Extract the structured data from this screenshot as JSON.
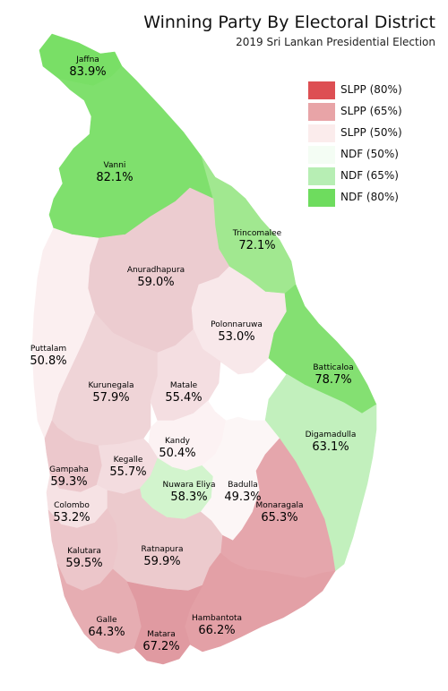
{
  "title": "Winning Party By Electoral District",
  "subtitle": "2019 Sri Lankan Presidential Election",
  "legend": [
    {
      "label": "SLPP (80%)",
      "color": "#dd4f53"
    },
    {
      "label": "SLPP (65%)",
      "color": "#e8a4a7"
    },
    {
      "label": "SLPP (50%)",
      "color": "#fbecec"
    },
    {
      "label": "NDF (50%)",
      "color": "#f4fdf4"
    },
    {
      "label": "NDF (65%)",
      "color": "#b7eeb4"
    },
    {
      "label": "NDF (80%)",
      "color": "#6edc5e"
    }
  ],
  "districts": [
    {
      "name": "Jaffna",
      "percent": "83.9%",
      "winner": "NDF",
      "color": "#79df66"
    },
    {
      "name": "Vanni",
      "percent": "82.1%",
      "winner": "NDF",
      "color": "#7fe06d"
    },
    {
      "name": "Trincomalee",
      "percent": "72.1%",
      "winner": "NDF",
      "color": "#a1e890"
    },
    {
      "name": "Anuradhapura",
      "percent": "59.0%",
      "winner": "SLPP",
      "color": "#ecccd0"
    },
    {
      "name": "Polonnaruwa",
      "percent": "53.0%",
      "winner": "SLPP",
      "color": "#f8e8ea"
    },
    {
      "name": "Puttalam",
      "percent": "50.8%",
      "winner": "SLPP",
      "color": "#fbeff0"
    },
    {
      "name": "Batticaloa",
      "percent": "78.7%",
      "winner": "NDF",
      "color": "#84e072"
    },
    {
      "name": "Kurunegala",
      "percent": "57.9%",
      "winner": "SLPP",
      "color": "#efd4d7"
    },
    {
      "name": "Matale",
      "percent": "55.4%",
      "winner": "SLPP",
      "color": "#f4dee1"
    },
    {
      "name": "Kandy",
      "percent": "50.4%",
      "winner": "SLPP",
      "color": "#fcf2f3"
    },
    {
      "name": "Digamadulla",
      "percent": "63.1%",
      "winner": "NDF",
      "color": "#c2f0bd"
    },
    {
      "name": "Gampaha",
      "percent": "59.3%",
      "winner": "SLPP",
      "color": "#ecc8cc"
    },
    {
      "name": "Kegalle",
      "percent": "55.7%",
      "winner": "SLPP",
      "color": "#f3dcdf"
    },
    {
      "name": "Nuwara Eliya",
      "percent": "58.3%",
      "winner": "NDF",
      "color": "#d2f4cd"
    },
    {
      "name": "Badulla",
      "percent": "49.3%",
      "winner": "SLPP",
      "color": "#fcf6f6"
    },
    {
      "name": "Colombo",
      "percent": "53.2%",
      "winner": "SLPP",
      "color": "#f6e2e4"
    },
    {
      "name": "Monaragala",
      "percent": "65.3%",
      "winner": "SLPP",
      "color": "#e5a6ac"
    },
    {
      "name": "Kalutara",
      "percent": "59.5%",
      "winner": "SLPP",
      "color": "#ecc6ca"
    },
    {
      "name": "Ratnapura",
      "percent": "59.9%",
      "winner": "SLPP",
      "color": "#eccacd"
    },
    {
      "name": "Galle",
      "percent": "64.3%",
      "winner": "SLPP",
      "color": "#e6adb2"
    },
    {
      "name": "Hambantota",
      "percent": "66.2%",
      "winner": "SLPP",
      "color": "#e3a0a6"
    },
    {
      "name": "Matara",
      "percent": "67.2%",
      "winner": "SLPP",
      "color": "#e09aa1"
    }
  ]
}
